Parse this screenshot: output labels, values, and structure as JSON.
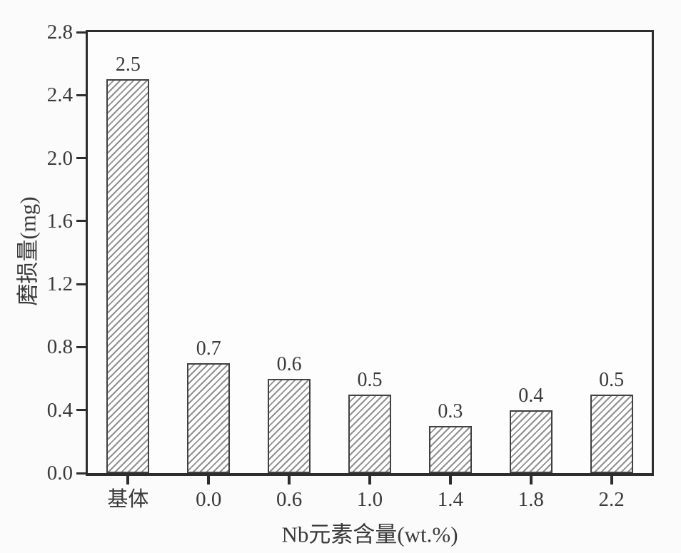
{
  "chart_data": {
    "type": "bar",
    "title": "",
    "categories": [
      "基体",
      "0.0",
      "0.6",
      "1.0",
      "1.4",
      "1.8",
      "2.2"
    ],
    "values": [
      2.5,
      0.7,
      0.6,
      0.5,
      0.3,
      0.4,
      0.5
    ],
    "bar_labels": [
      "2.5",
      "0.7",
      "0.6",
      "0.5",
      "0.3",
      "0.4",
      "0.5"
    ],
    "xlabel": "Nb元素含量(wt.%)",
    "ylabel": "磨损量(mg)",
    "ylim": [
      0,
      2.8
    ],
    "ytick_step": 0.4,
    "yticks": [
      "0.0",
      "0.4",
      "0.8",
      "1.2",
      "1.6",
      "2.0",
      "2.4",
      "2.8"
    ],
    "grid": false,
    "legend": null,
    "bar_style": "diagonal-hatch-forward-slash",
    "colors": {
      "background": "#fbfbfb",
      "plot_background": "#fdfdfd",
      "axis": "#2d2d2d",
      "bar_border": "#414141",
      "hatch_line": "#8f8f8f",
      "bar_fill": "#ffffff",
      "text": "#3a3a3a"
    }
  }
}
